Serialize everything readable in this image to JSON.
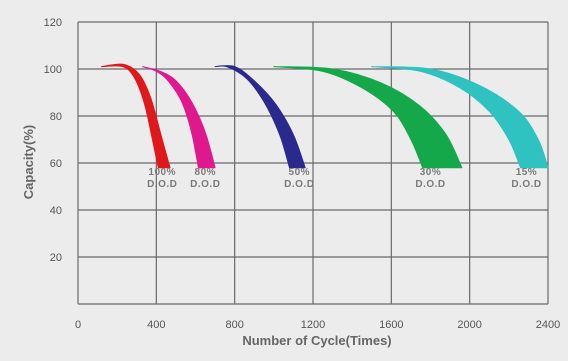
{
  "chart_data": {
    "type": "area",
    "xlabel": "Number of Cycle(Times)",
    "ylabel": "Capacity(%)",
    "xlim": [
      0,
      2400
    ],
    "ylim": [
      0,
      120
    ],
    "xticks": [
      0,
      400,
      800,
      1200,
      1600,
      2000,
      2400
    ],
    "yticks": [
      20,
      40,
      60,
      80,
      100,
      120
    ],
    "grid": true,
    "series": [
      {
        "color": "#e0181c",
        "labels": [
          "100%",
          "D.O.D"
        ],
        "label_x": 430,
        "label_y": 55,
        "upper": [
          [
            120,
            101
          ],
          [
            230,
            102
          ],
          [
            310,
            98
          ],
          [
            370,
            88
          ],
          [
            430,
            70
          ],
          [
            470,
            58
          ]
        ],
        "lower": [
          [
            120,
            101
          ],
          [
            230,
            101
          ],
          [
            290,
            96
          ],
          [
            340,
            85
          ],
          [
            380,
            70
          ],
          [
            410,
            58
          ]
        ]
      },
      {
        "color": "#e0188e",
        "labels": [
          "80%",
          "D.O.D"
        ],
        "label_x": 650,
        "label_y": 55,
        "upper": [
          [
            330,
            101
          ],
          [
            420,
            99
          ],
          [
            500,
            95
          ],
          [
            580,
            86
          ],
          [
            650,
            73
          ],
          [
            700,
            58
          ]
        ],
        "lower": [
          [
            330,
            101
          ],
          [
            400,
            99
          ],
          [
            460,
            95
          ],
          [
            530,
            86
          ],
          [
            580,
            73
          ],
          [
            615,
            58
          ]
        ]
      },
      {
        "color": "#2a2a8e",
        "labels": [
          "50%",
          "D.O.D"
        ],
        "label_x": 1130,
        "label_y": 55,
        "upper": [
          [
            700,
            101
          ],
          [
            800,
            101
          ],
          [
            900,
            95
          ],
          [
            1010,
            85
          ],
          [
            1100,
            72
          ],
          [
            1160,
            58
          ]
        ],
        "lower": [
          [
            700,
            101
          ],
          [
            760,
            101
          ],
          [
            860,
            96
          ],
          [
            950,
            86
          ],
          [
            1030,
            72
          ],
          [
            1080,
            58
          ]
        ]
      },
      {
        "color": "#14a84a",
        "labels": [
          "30%",
          "D.O.D"
        ],
        "label_x": 1800,
        "label_y": 55,
        "upper": [
          [
            1000,
            101
          ],
          [
            1300,
            100
          ],
          [
            1550,
            94
          ],
          [
            1750,
            84
          ],
          [
            1880,
            72
          ],
          [
            1960,
            58
          ]
        ],
        "lower": [
          [
            1000,
            101
          ],
          [
            1250,
            99
          ],
          [
            1450,
            92
          ],
          [
            1610,
            82
          ],
          [
            1700,
            70
          ],
          [
            1760,
            58
          ]
        ]
      },
      {
        "color": "#2ec2c0",
        "labels": [
          "15%",
          "D.O.D"
        ],
        "label_x": 2290,
        "label_y": 55,
        "upper": [
          [
            1500,
            101
          ],
          [
            1800,
            100
          ],
          [
            2050,
            93
          ],
          [
            2250,
            82
          ],
          [
            2350,
            70
          ],
          [
            2400,
            58
          ]
        ],
        "lower": [
          [
            1500,
            101
          ],
          [
            1750,
            99
          ],
          [
            1950,
            92
          ],
          [
            2100,
            82
          ],
          [
            2200,
            70
          ],
          [
            2260,
            58
          ]
        ]
      }
    ]
  }
}
